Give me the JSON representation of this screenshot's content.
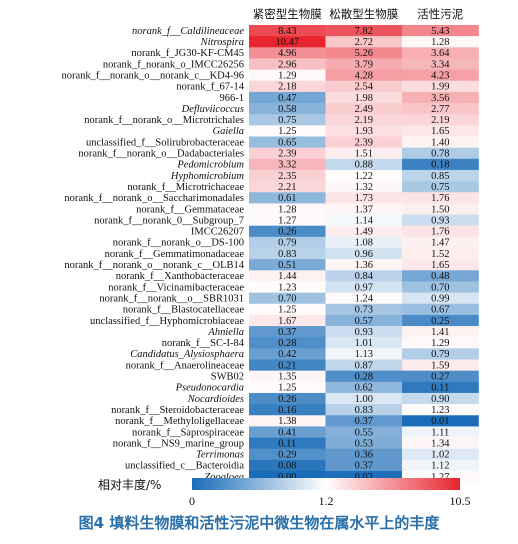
{
  "caption": "图4   填料生物膜和活性污泥中微生物在属水平上的丰度",
  "chart_data": {
    "type": "heatmap",
    "columns": [
      "紧密型生物膜",
      "松散型生物膜",
      "活性污泥"
    ],
    "rows": [
      {
        "label": "norank_f__Caldilineaceae",
        "italic": true,
        "values": [
          8.43,
          7.82,
          5.43
        ]
      },
      {
        "label": "Nitrospira",
        "italic": true,
        "values": [
          10.47,
          2.72,
          1.28
        ]
      },
      {
        "label": "norank_f_JG30-KF-CM45",
        "italic": false,
        "values": [
          4.96,
          5.26,
          3.64
        ]
      },
      {
        "label": "norank_f_norank_o_IMCC26256",
        "italic": false,
        "values": [
          2.96,
          3.79,
          3.34
        ]
      },
      {
        "label": "norank_f__norank_o__norank_c__KD4-96",
        "italic": false,
        "values": [
          1.29,
          4.28,
          4.23
        ]
      },
      {
        "label": "norank_f_67-14",
        "italic": false,
        "values": [
          2.18,
          2.54,
          1.99
        ]
      },
      {
        "label": "966-1",
        "italic": false,
        "values": [
          0.47,
          1.98,
          3.56
        ]
      },
      {
        "label": "Defluviicoccus",
        "italic": true,
        "values": [
          0.58,
          2.49,
          2.77
        ]
      },
      {
        "label": "norank_f__norank_o__Microtrichales",
        "italic": false,
        "values": [
          0.75,
          2.19,
          2.19
        ]
      },
      {
        "label": "Gaiella",
        "italic": true,
        "values": [
          1.25,
          1.93,
          1.65
        ]
      },
      {
        "label": "unclassified_f__Solirubrobacteraceae",
        "italic": false,
        "values": [
          0.65,
          2.39,
          1.4
        ]
      },
      {
        "label": "norank_f__norank_o__Dadabacteriales",
        "italic": false,
        "values": [
          2.39,
          1.51,
          0.78
        ]
      },
      {
        "label": "Pedomicrobium",
        "italic": true,
        "values": [
          3.32,
          0.88,
          0.18
        ]
      },
      {
        "label": "Hyphomicrobium",
        "italic": true,
        "values": [
          2.35,
          1.22,
          0.85
        ]
      },
      {
        "label": "norank_f__Microtrichaceae",
        "italic": false,
        "values": [
          2.21,
          1.32,
          0.75
        ]
      },
      {
        "label": "norank_f__norank_o__Saccharimonadales",
        "italic": false,
        "values": [
          0.61,
          1.73,
          1.76
        ]
      },
      {
        "label": "norank_f__Gemmataceae",
        "italic": false,
        "values": [
          1.28,
          1.37,
          1.5
        ]
      },
      {
        "label": "norank_f__norank_0__Subgroup_7",
        "italic": false,
        "values": [
          1.27,
          1.14,
          0.93
        ]
      },
      {
        "label": "IMCC26207",
        "italic": false,
        "values": [
          0.26,
          1.49,
          1.76
        ]
      },
      {
        "label": "norank_f__norank_o__DS-100",
        "italic": false,
        "values": [
          0.79,
          1.08,
          1.47
        ]
      },
      {
        "label": "norank_f__Gemmatimonadaceae",
        "italic": false,
        "values": [
          0.83,
          0.96,
          1.52
        ]
      },
      {
        "label": "norank_f__norank_o__norank_c__OLB14",
        "italic": false,
        "values": [
          0.51,
          1.36,
          1.65
        ]
      },
      {
        "label": "norank_f__Xanthobacteraceae",
        "italic": false,
        "values": [
          1.44,
          0.84,
          0.48
        ]
      },
      {
        "label": "norank_f__Vicinamibacteraceae",
        "italic": false,
        "values": [
          1.23,
          0.97,
          0.7
        ]
      },
      {
        "label": "norank_f__norank__o__SBR1031",
        "italic": false,
        "values": [
          0.7,
          1.24,
          0.99
        ]
      },
      {
        "label": "norank_f__Blastocatellaceae",
        "italic": false,
        "values": [
          1.25,
          0.73,
          0.67
        ]
      },
      {
        "label": "unclassified_f__Hyphomicrobiaceae",
        "italic": false,
        "values": [
          1.67,
          0.57,
          0.25
        ]
      },
      {
        "label": "Ahniella",
        "italic": true,
        "values": [
          0.37,
          0.93,
          1.41
        ]
      },
      {
        "label": "norank_f__SC-I-84",
        "italic": false,
        "values": [
          0.28,
          1.01,
          1.29
        ]
      },
      {
        "label": "Candidatus_Alysiosphaera",
        "italic": true,
        "values": [
          0.42,
          1.13,
          0.79
        ]
      },
      {
        "label": "norank_f__Anaerolineaceae",
        "italic": false,
        "values": [
          0.21,
          0.87,
          1.59
        ]
      },
      {
        "label": "SWB02",
        "italic": false,
        "values": [
          1.35,
          0.28,
          0.27
        ]
      },
      {
        "label": "Pseudonocardia",
        "italic": true,
        "values": [
          1.25,
          0.62,
          0.11
        ]
      },
      {
        "label": "Nocardioides",
        "italic": true,
        "values": [
          0.26,
          1.0,
          0.9
        ]
      },
      {
        "label": "norank_f__Steroidobacteraceae",
        "italic": false,
        "values": [
          0.16,
          0.83,
          1.23
        ]
      },
      {
        "label": "norank_f__Methyloligellaceae",
        "italic": false,
        "values": [
          1.38,
          0.37,
          0.01
        ]
      },
      {
        "label": "norank_f__Saprospiraceae",
        "italic": false,
        "values": [
          0.41,
          0.55,
          1.11
        ]
      },
      {
        "label": "norank_f__NS9_marine_group",
        "italic": false,
        "values": [
          0.11,
          0.53,
          1.34
        ]
      },
      {
        "label": "Terrimonas",
        "italic": true,
        "values": [
          0.29,
          0.36,
          1.02
        ]
      },
      {
        "label": "unclassified_c__Bacteroidia",
        "italic": false,
        "values": [
          0.08,
          0.37,
          1.12
        ]
      },
      {
        "label": "Zoogloea",
        "italic": true,
        "values": [
          0.0,
          0.02,
          1.27
        ]
      }
    ],
    "colorbar": {
      "title": "相对丰度/%",
      "min": 0,
      "mid": 1.2,
      "max": 10.5,
      "tick_labels": [
        "0",
        "1.2",
        "10.5"
      ],
      "colors": {
        "low": "#1a6cb8",
        "mid": "#ffffff",
        "high": "#e8242e"
      }
    }
  }
}
